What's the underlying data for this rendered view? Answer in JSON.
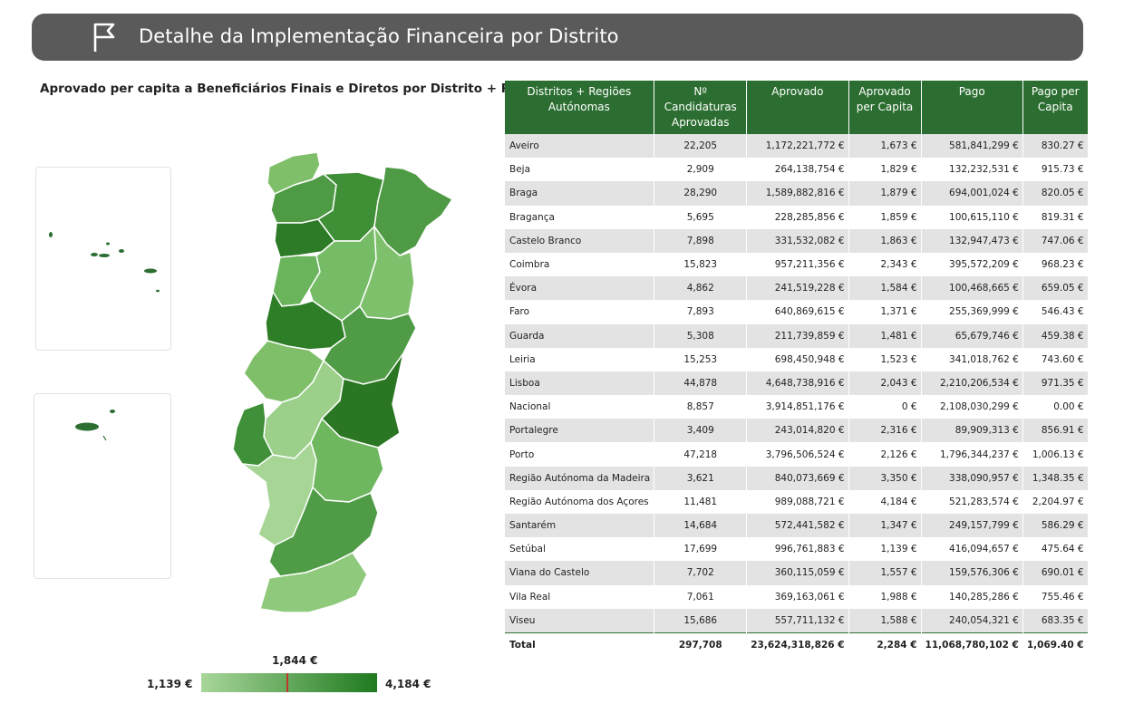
{
  "header": {
    "title": "Detalhe da Implementação Financeira por Distrito",
    "icon": "flag-icon"
  },
  "map": {
    "title": "Aprovado per capita a Beneficiários Finais e Diretos por Distrito + RA's",
    "legend": {
      "min": "1,139 €",
      "max": "4,184 €",
      "marker": "1,844 €"
    },
    "colors": {
      "light": "#a8d69a",
      "dark": "#1f7a1f"
    }
  },
  "table": {
    "columns": [
      "Distritos + Regiões Autónomas",
      "Nº Candidaturas Aprovadas",
      "Aprovado",
      "Aprovado per Capita",
      "Pago",
      "Pago per Capita"
    ],
    "rows": [
      [
        "Aveiro",
        "22,205",
        "1,172,221,772 €",
        "1,673 €",
        "581,841,299 €",
        "830.27 €"
      ],
      [
        "Beja",
        "2,909",
        "264,138,754 €",
        "1,829 €",
        "132,232,531 €",
        "915.73 €"
      ],
      [
        "Braga",
        "28,290",
        "1,589,882,816 €",
        "1,879 €",
        "694,001,024 €",
        "820.05 €"
      ],
      [
        "Bragança",
        "5,695",
        "228,285,856 €",
        "1,859 €",
        "100,615,110 €",
        "819.31 €"
      ],
      [
        "Castelo Branco",
        "7,898",
        "331,532,082 €",
        "1,863 €",
        "132,947,473 €",
        "747.06 €"
      ],
      [
        "Coimbra",
        "15,823",
        "957,211,356 €",
        "2,343 €",
        "395,572,209 €",
        "968.23 €"
      ],
      [
        "Évora",
        "4,862",
        "241,519,228 €",
        "1,584 €",
        "100,468,665 €",
        "659.05 €"
      ],
      [
        "Faro",
        "7,893",
        "640,869,615 €",
        "1,371 €",
        "255,369,999 €",
        "546.43 €"
      ],
      [
        "Guarda",
        "5,308",
        "211,739,859 €",
        "1,481 €",
        "65,679,746 €",
        "459.38 €"
      ],
      [
        "Leiria",
        "15,253",
        "698,450,948 €",
        "1,523 €",
        "341,018,762 €",
        "743.60 €"
      ],
      [
        "Lisboa",
        "44,878",
        "4,648,738,916 €",
        "2,043 €",
        "2,210,206,534 €",
        "971.35 €"
      ],
      [
        "Nacional",
        "8,857",
        "3,914,851,176 €",
        "0 €",
        "2,108,030,299 €",
        "0.00 €"
      ],
      [
        "Portalegre",
        "3,409",
        "243,014,820 €",
        "2,316 €",
        "89,909,313 €",
        "856.91 €"
      ],
      [
        "Porto",
        "47,218",
        "3,796,506,524 €",
        "2,126 €",
        "1,796,344,237 €",
        "1,006.13 €"
      ],
      [
        "Região Autónoma da Madeira",
        "3,621",
        "840,073,669 €",
        "3,350 €",
        "338,090,957 €",
        "1,348.35 €"
      ],
      [
        "Região Autónoma dos Açores",
        "11,481",
        "989,088,721 €",
        "4,184 €",
        "521,283,574 €",
        "2,204.97 €"
      ],
      [
        "Santarém",
        "14,684",
        "572,441,582 €",
        "1,347 €",
        "249,157,799 €",
        "586.29 €"
      ],
      [
        "Setúbal",
        "17,699",
        "996,761,883 €",
        "1,139 €",
        "416,094,657 €",
        "475.64 €"
      ],
      [
        "Viana do Castelo",
        "7,702",
        "360,115,059 €",
        "1,557 €",
        "159,576,306 €",
        "690.01 €"
      ],
      [
        "Vila Real",
        "7,061",
        "369,163,061 €",
        "1,988 €",
        "140,285,286 €",
        "755.46 €"
      ],
      [
        "Viseu",
        "15,686",
        "557,711,132 €",
        "1,588 €",
        "240,054,321 €",
        "683.35 €"
      ]
    ],
    "total": [
      "Total",
      "297,708",
      "23,624,318,826 €",
      "2,284 €",
      "11,068,780,102 €",
      "1,069.40 €"
    ]
  }
}
